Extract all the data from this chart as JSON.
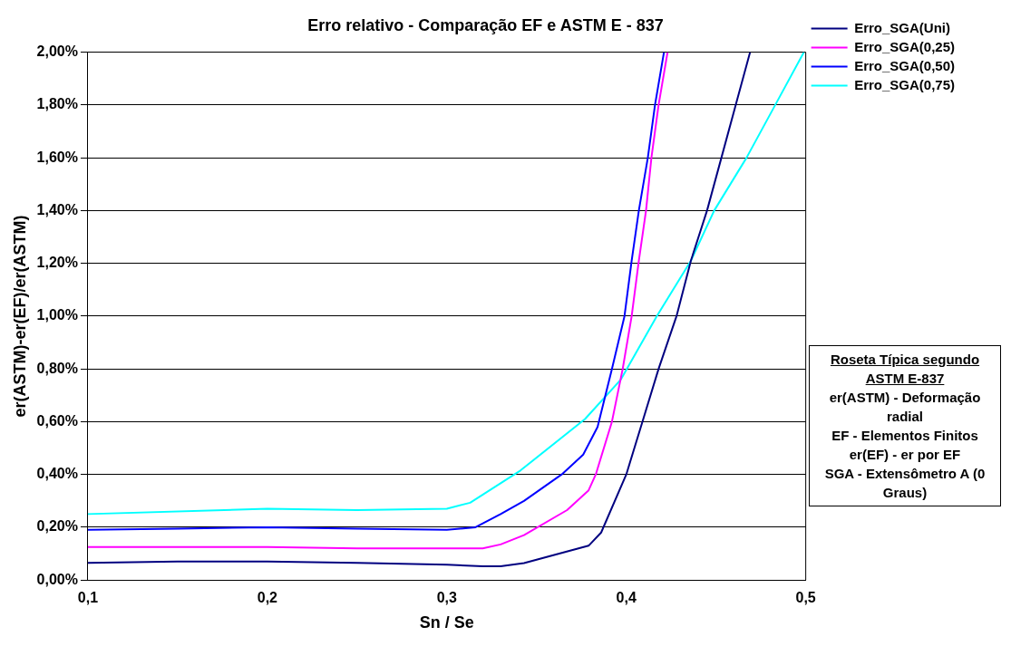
{
  "chart_data": {
    "type": "line",
    "title": "Erro relativo - Comparação EF e ASTM E - 837",
    "xlabel": "Sn / Se",
    "ylabel": "er(ASTM)-er(EF)/er(ASTM)",
    "xlim": [
      0.1,
      0.5
    ],
    "xticks": [
      {
        "value": 0.1,
        "label": "0,1"
      },
      {
        "value": 0.2,
        "label": "0,2"
      },
      {
        "value": 0.3,
        "label": "0,3"
      },
      {
        "value": 0.4,
        "label": "0,4"
      },
      {
        "value": 0.5,
        "label": "0,5"
      }
    ],
    "ylim": [
      0,
      2
    ],
    "yticks": [
      {
        "value": 0,
        "label": "0,00%"
      },
      {
        "value": 0.2,
        "label": "0,20%"
      },
      {
        "value": 0.4,
        "label": "0,40%"
      },
      {
        "value": 0.6,
        "label": "0,60%"
      },
      {
        "value": 0.8,
        "label": "0,80%"
      },
      {
        "value": 1,
        "label": "1,00%"
      },
      {
        "value": 1.2,
        "label": "1,20%"
      },
      {
        "value": 1.4,
        "label": "1,40%"
      },
      {
        "value": 1.6,
        "label": "1,60%"
      },
      {
        "value": 1.8,
        "label": "1,80%"
      },
      {
        "value": 2,
        "label": "2,00%"
      }
    ],
    "grid": "y",
    "legend": "right",
    "marker": "none",
    "line_style": "solid",
    "series": [
      {
        "name": "Erro_SGA(Uni)",
        "color": "#000080",
        "x": [
          0.1,
          0.15,
          0.2,
          0.25,
          0.3,
          0.32,
          0.33,
          0.343,
          0.379,
          0.386,
          0.4,
          0.409,
          0.418,
          0.428,
          0.436,
          0.445,
          0.453,
          0.461,
          0.469
        ],
        "values": [
          0.065,
          0.07,
          0.07,
          0.065,
          0.058,
          0.052,
          0.052,
          0.064,
          0.13,
          0.18,
          0.4,
          0.6,
          0.8,
          1.0,
          1.21,
          1.4,
          1.6,
          1.8,
          2.0
        ]
      },
      {
        "name": "Erro_SGA(0,25)",
        "color": "#ff00ff",
        "x": [
          0.1,
          0.2,
          0.25,
          0.32,
          0.33,
          0.343,
          0.367,
          0.379,
          0.383,
          0.392,
          0.398,
          0.403,
          0.407,
          0.411,
          0.414,
          0.418,
          0.423
        ],
        "values": [
          0.125,
          0.125,
          0.12,
          0.12,
          0.135,
          0.17,
          0.265,
          0.34,
          0.4,
          0.6,
          0.8,
          1.0,
          1.21,
          1.4,
          1.6,
          1.8,
          2.0
        ]
      },
      {
        "name": "Erro_SGA(0,50)",
        "color": "#0000ff",
        "x": [
          0.1,
          0.15,
          0.2,
          0.25,
          0.3,
          0.316,
          0.33,
          0.343,
          0.364,
          0.376,
          0.384,
          0.388,
          0.392,
          0.399,
          0.403,
          0.407,
          0.412,
          0.416,
          0.421
        ],
        "values": [
          0.19,
          0.195,
          0.2,
          0.195,
          0.19,
          0.2,
          0.25,
          0.3,
          0.4,
          0.475,
          0.58,
          0.69,
          0.8,
          1.0,
          1.21,
          1.4,
          1.6,
          1.8,
          2.0
        ]
      },
      {
        "name": "Erro_SGA(0,75)",
        "color": "#00ffff",
        "x": [
          0.1,
          0.2,
          0.25,
          0.3,
          0.313,
          0.341,
          0.377,
          0.397,
          0.417,
          0.436,
          0.449,
          0.467,
          0.483,
          0.499
        ],
        "values": [
          0.25,
          0.27,
          0.265,
          0.27,
          0.293,
          0.415,
          0.61,
          0.76,
          1.0,
          1.21,
          1.4,
          1.6,
          1.8,
          2.0
        ]
      }
    ],
    "annotations": [
      "Roseta Típica segundo ASTM E-837",
      "er(ASTM) - Deformação radial",
      "EF - Elementos Finitos",
      "er(EF) - er por EF",
      "SGA - Extensômetro A (0 Graus)"
    ]
  }
}
